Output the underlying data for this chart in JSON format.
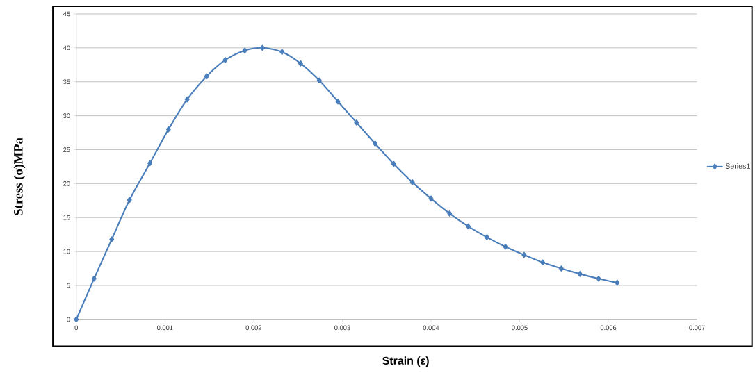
{
  "chart_data": {
    "type": "line",
    "xlabel": "Strain (ε)",
    "ylabel": "Stress (σ)MPa",
    "x": [
      0,
      0.0002,
      0.0004,
      0.0006,
      0.00083,
      0.00104,
      0.00125,
      0.00147,
      0.00168,
      0.0019,
      0.0021,
      0.00232,
      0.00253,
      0.00274,
      0.00295,
      0.00316,
      0.00337,
      0.00358,
      0.00379,
      0.004,
      0.00421,
      0.00442,
      0.00463,
      0.00484,
      0.00505,
      0.00526,
      0.00547,
      0.00568,
      0.00589,
      0.0061
    ],
    "series": [
      {
        "name": "Series1",
        "color": "#4a7ebb",
        "values": [
          0,
          6,
          11.8,
          17.6,
          23,
          28,
          32.4,
          35.8,
          38.2,
          39.6,
          40,
          39.4,
          37.7,
          35.2,
          32.1,
          29,
          25.9,
          22.9,
          20.2,
          17.8,
          15.6,
          13.7,
          12.1,
          10.7,
          9.5,
          8.4,
          7.5,
          6.7,
          6.0,
          5.4
        ]
      }
    ],
    "xlim": [
      0,
      0.007
    ],
    "xticks": [
      0,
      0.001,
      0.002,
      0.003,
      0.004,
      0.005,
      0.006,
      0.007
    ],
    "ylim": [
      0,
      45
    ],
    "yticks": [
      0,
      5,
      10,
      15,
      20,
      25,
      30,
      35,
      40,
      45
    ],
    "grid": "y",
    "legend": "right",
    "marker": "diamond",
    "line_style": "solid"
  }
}
